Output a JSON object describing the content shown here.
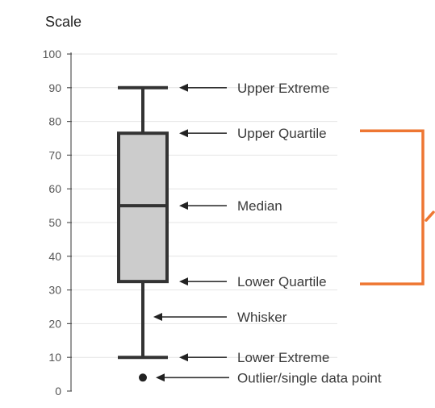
{
  "title": "Scale",
  "axis": {
    "min": 0,
    "max": 100,
    "step": 10,
    "tick_labels": [
      "0",
      "10",
      "20",
      "30",
      "40",
      "50",
      "60",
      "70",
      "80",
      "90",
      "100"
    ]
  },
  "box": {
    "lower_extreme": 10,
    "lower_quartile": 32.5,
    "median": 55,
    "upper_quartile": 76.5,
    "upper_extreme": 90,
    "outlier": 4
  },
  "labels": {
    "upper_extreme": "Upper Extreme",
    "upper_quartile": "Upper Quartile",
    "median": "Median",
    "lower_quartile": "Lower Quartile",
    "whisker": "Whisker",
    "lower_extreme": "Lower Extreme",
    "outlier": "Outlier/single data point"
  },
  "colors": {
    "box_fill": "#cccccc",
    "stroke": "#333333",
    "bracket": "#ee7733",
    "grid": "#e4e4e4"
  }
}
